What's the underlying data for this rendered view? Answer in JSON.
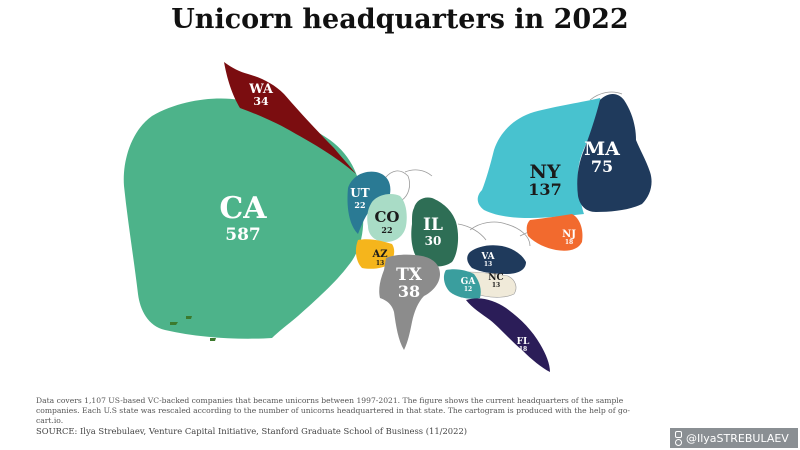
{
  "title": "Unicorn headquarters in 2022",
  "states": {
    "CA": {
      "name": "CA",
      "count": "587",
      "color": "#4db38a"
    },
    "WA": {
      "name": "WA",
      "count": "34",
      "color": "#7b0d10"
    },
    "UT": {
      "name": "UT",
      "count": "22",
      "color": "#2a7a94"
    },
    "CO": {
      "name": "CO",
      "count": "22",
      "color": "#a9dcc6"
    },
    "AZ": {
      "name": "AZ",
      "count": "13",
      "color": "#f5b51c"
    },
    "IL": {
      "name": "IL",
      "count": "30",
      "color": "#2e6e55"
    },
    "TX": {
      "name": "TX",
      "count": "38",
      "color": "#8c8c8c"
    },
    "NY": {
      "name": "NY",
      "count": "137",
      "color": "#48c2cf"
    },
    "MA": {
      "name": "MA",
      "count": "75",
      "color": "#1f3a5c"
    },
    "NJ": {
      "name": "NJ",
      "count": "18",
      "color": "#f26a2e"
    },
    "VA": {
      "name": "VA",
      "count": "13",
      "color": "#1f3a5c"
    },
    "NC": {
      "name": "NC",
      "count": "13",
      "color": "#f0ead9"
    },
    "GA": {
      "name": "GA",
      "count": "12",
      "color": "#3a9e9e"
    },
    "FL": {
      "name": "FL",
      "count": "18",
      "color": "#2b1d58"
    }
  },
  "footnote": "Data covers 1,107 US-based VC-backed companies that became unicorns between 1997-2021. The figure shows the current headquarters of the sample companies. Each U.S state was rescaled according to the number of unicorns headquartered in that state. The cartogram is produced with the help of go-cart.io.",
  "source": "SOURCE: Ilya Strebulaev, Venture Capital Initiative, Stanford Graduate School of Business (11/2022)",
  "handle": "@IlyaSTREBULAEV",
  "handle_icons": [
    "linkedin-icon",
    "twitter-icon",
    "instagram-icon"
  ]
}
